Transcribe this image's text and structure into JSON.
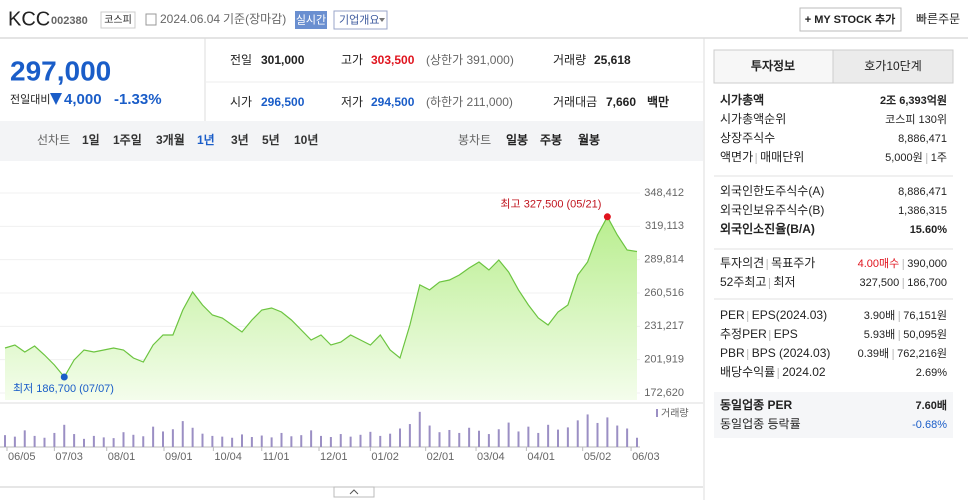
{
  "header": {
    "name": "KCC",
    "code": "002380",
    "market": "코스피",
    "date": "2024.06.04",
    "basis": "기준(장마감)",
    "realtime": "실시간",
    "company_info": "기업개요",
    "my_stock": "+ MY STOCK 추가",
    "quick_order": "빠른주문"
  },
  "price": {
    "current": "297,000",
    "change_label": "전일대비",
    "change": "4,000",
    "change_rate": "-1.33%"
  },
  "summary": {
    "prev_close": {
      "label": "전일",
      "value": "301,000"
    },
    "high": {
      "label": "고가",
      "value": "303,500",
      "note": "(상한가 391,000)"
    },
    "volume": {
      "label": "거래량",
      "value": "25,618"
    },
    "open": {
      "label": "시가",
      "value": "296,500"
    },
    "low": {
      "label": "저가",
      "value": "294,500",
      "note": "(하한가 211,000)"
    },
    "amount": {
      "label": "거래대금",
      "value": "7,660",
      "unit": "백만"
    }
  },
  "tabs": {
    "line_label": "선차트",
    "line": [
      "1일",
      "1주일",
      "3개월",
      "1년",
      "3년",
      "5년",
      "10년"
    ],
    "candle_label": "봉차트",
    "candle": [
      "일봉",
      "주봉",
      "월봉"
    ]
  },
  "chart_data": {
    "type": "area",
    "color": "#6cc440",
    "values": [
      212200,
      214800,
      208700,
      213900,
      206000,
      197200,
      186700,
      201600,
      210400,
      208700,
      210400,
      212200,
      210400,
      203400,
      199900,
      214800,
      223600,
      223600,
      245600,
      261400,
      250000,
      241200,
      238500,
      232400,
      226200,
      236800,
      245600,
      247300,
      243800,
      236800,
      228000,
      219200,
      223600,
      214800,
      217400,
      223600,
      219200,
      214800,
      223600,
      210400,
      203400,
      232400,
      267600,
      263200,
      270200,
      271900,
      276300,
      282500,
      287800,
      280700,
      289500,
      279000,
      263200,
      250000,
      238500,
      232400,
      243800,
      250000,
      276300,
      287800,
      311500,
      327500,
      311500,
      298300,
      297000
    ],
    "ylim": [
      172620,
      348412
    ],
    "yticks": [
      {
        "value": 172620,
        "label": "172,620"
      },
      {
        "value": 201919,
        "label": "201,919"
      },
      {
        "value": 231217,
        "label": "231,217"
      },
      {
        "value": 260516,
        "label": "260,516"
      },
      {
        "value": 289814,
        "label": "289,814"
      },
      {
        "value": 319113,
        "label": "319,113"
      },
      {
        "value": 348412,
        "label": "348,412"
      }
    ],
    "xlim": [
      0,
      64
    ],
    "xticks": [
      {
        "value": 0.2,
        "label": "06/05"
      },
      {
        "value": 5,
        "label": "07/03"
      },
      {
        "value": 10.3,
        "label": "08/01"
      },
      {
        "value": 16.1,
        "label": "09/01"
      },
      {
        "value": 21.1,
        "label": "10/04"
      },
      {
        "value": 26,
        "label": "11/01"
      },
      {
        "value": 31.8,
        "label": "12/01"
      },
      {
        "value": 37,
        "label": "01/02"
      },
      {
        "value": 42.6,
        "label": "02/01"
      },
      {
        "value": 47.7,
        "label": "03/04"
      },
      {
        "value": 52.8,
        "label": "04/01"
      },
      {
        "value": 58.5,
        "label": "05/02"
      },
      {
        "value": 63.4,
        "label": "06/03"
      }
    ],
    "grid": true,
    "annotations": {
      "max": "최고 327,500 (05/21)",
      "min": "최저 186,700 (07/07)"
    },
    "volume": {
      "label": "거래량",
      "color": "#9b8fc4",
      "ylim": [
        0,
        100000
      ],
      "values": [
        32000,
        28000,
        45000,
        30000,
        25000,
        38000,
        60000,
        35000,
        22000,
        30000,
        26000,
        24000,
        40000,
        33000,
        29000,
        55000,
        42000,
        48000,
        70000,
        52000,
        36000,
        30000,
        28000,
        25000,
        34000,
        27000,
        31000,
        26000,
        38000,
        29000,
        32000,
        45000,
        30000,
        27000,
        35000,
        28000,
        33000,
        41000,
        30000,
        36000,
        50000,
        62000,
        95000,
        58000,
        40000,
        46000,
        38000,
        52000,
        44000,
        35000,
        48000,
        66000,
        42000,
        55000,
        38000,
        60000,
        47000,
        53000,
        72000,
        88000,
        65000,
        80000,
        58000,
        50000,
        25000
      ]
    }
  },
  "invest_info": {
    "tabs": [
      "투자정보",
      "호가10단계"
    ],
    "groups": [
      [
        {
          "label": [
            "시가총액"
          ],
          "value": [
            "2조 6,393억원"
          ]
        },
        {
          "label": [
            "시가총액순위"
          ],
          "value": [
            "코스피 130위"
          ]
        },
        {
          "label": [
            "상장주식수"
          ],
          "value": [
            "8,886,471"
          ]
        },
        {
          "label": [
            "액면가",
            "매매단위"
          ],
          "value": [
            "5,000원",
            "1주"
          ]
        }
      ],
      [
        {
          "label": [
            "외국인한도주식수(A)"
          ],
          "value": [
            "8,886,471"
          ]
        },
        {
          "label": [
            "외국인보유주식수(B)"
          ],
          "value": [
            "1,386,315"
          ]
        },
        {
          "label": [
            "외국인소진율(B/A)"
          ],
          "value": [
            "15.60%"
          ]
        }
      ],
      [
        {
          "label": [
            "투자의견",
            "목표주가"
          ],
          "value": [
            "4.00매수",
            "390,000"
          ]
        },
        {
          "label": [
            "52주최고",
            "최저"
          ],
          "value": [
            "327,500",
            "186,700"
          ]
        }
      ],
      [
        {
          "label": [
            "PER",
            "EPS(2024.03)"
          ],
          "value": [
            "3.90배",
            "76,151원"
          ]
        },
        {
          "label": [
            "추정PER",
            "EPS"
          ],
          "value": [
            "5.93배",
            "50,095원"
          ]
        },
        {
          "label": [
            "PBR",
            "BPS (2024.03)"
          ],
          "value": [
            "0.39배",
            "762,216원"
          ]
        },
        {
          "label": [
            "배당수익률",
            "2024.02"
          ],
          "value": [
            "2.69%"
          ]
        }
      ],
      [
        {
          "label": [
            "동일업종 PER"
          ],
          "value": [
            "7.60배"
          ]
        },
        {
          "label": [
            "동일업종 등락률"
          ],
          "value": [
            "-0.68%"
          ]
        }
      ]
    ]
  }
}
